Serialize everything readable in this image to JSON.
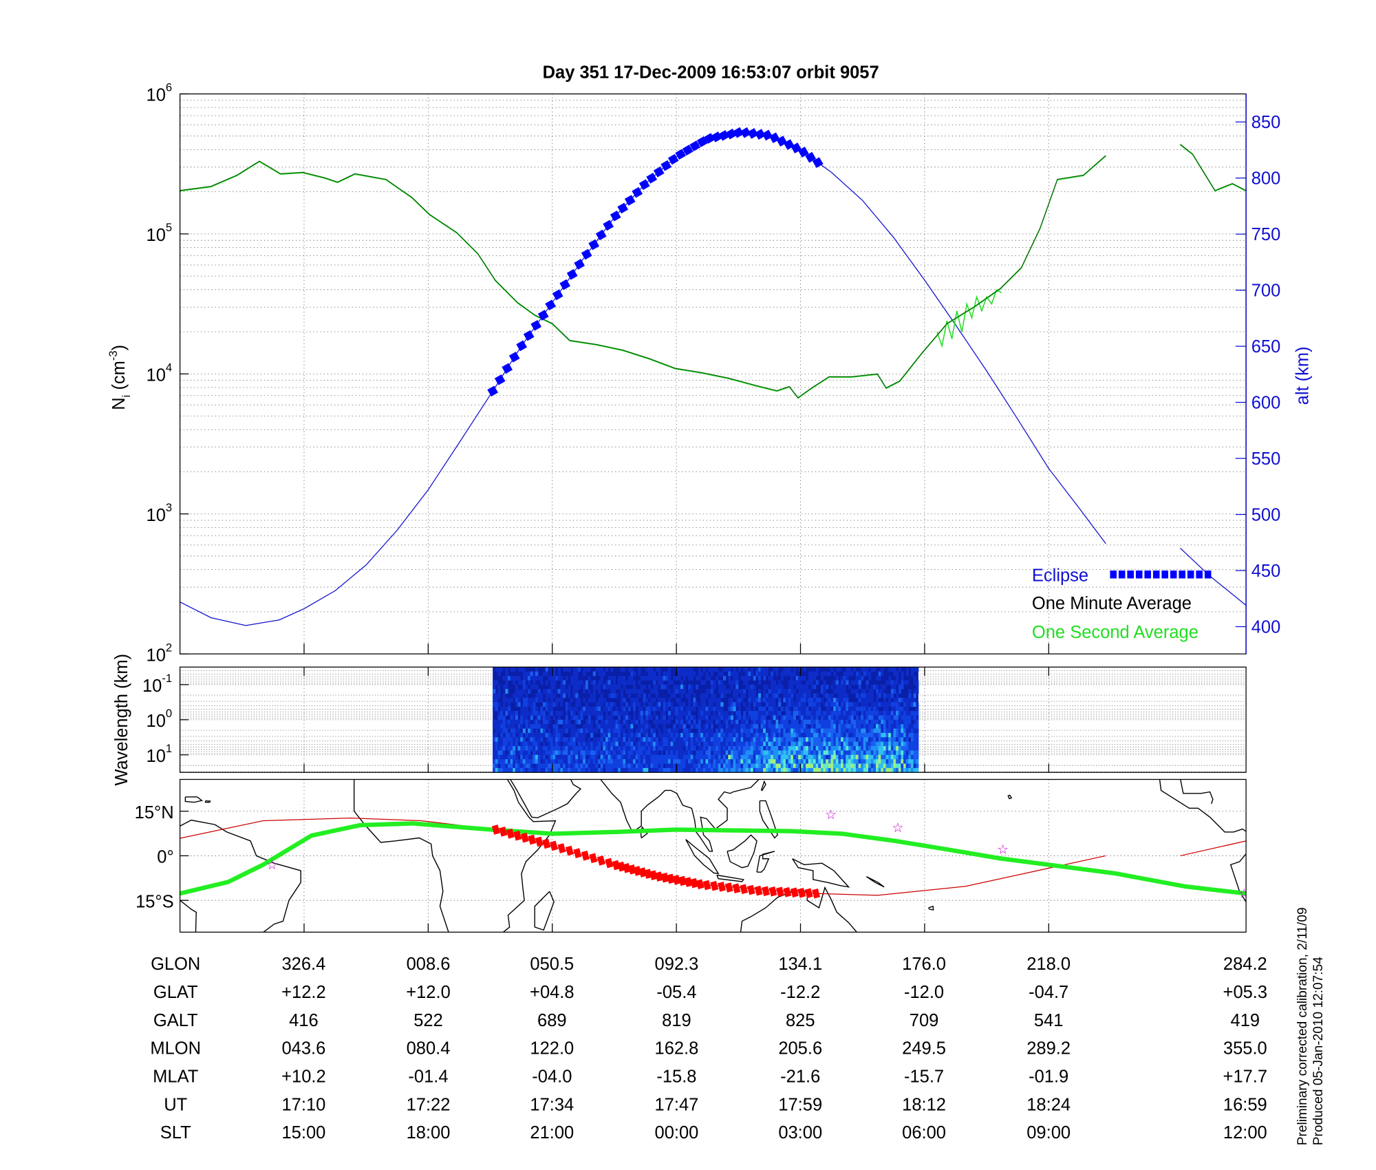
{
  "title": "Day 351  17-Dec-2009 16:53:07   orbit 9057",
  "axes": {
    "left_label_base": "N",
    "left_label_sub": "i",
    "left_label_unit": " (cm",
    "left_label_exp": "-3",
    "left_label_close": ")",
    "right_label": "alt (km)",
    "spectro_label": "Wavelength (km)",
    "map_lat_labels": [
      "15°N",
      "0°",
      "15°S"
    ]
  },
  "legend": {
    "eclipse": "Eclipse",
    "one_minute": "One Minute Average",
    "one_second": "One Second Average"
  },
  "colors": {
    "altitude": "#1010d0",
    "eclipse": "#0000ff",
    "one_minute": "#006400",
    "one_second": "#22dd22",
    "track_red": "#cc0000",
    "eclipse_track": "#ff0000",
    "mag_equator": "#22ee22",
    "star": "#cc00cc"
  },
  "table": {
    "rows": [
      {
        "label": "GLON",
        "values": [
          "326.4",
          "008.6",
          "050.5",
          "092.3",
          "134.1",
          "176.0",
          "218.0",
          "284.2"
        ]
      },
      {
        "label": "GLAT",
        "values": [
          "+12.2",
          "+12.0",
          "+04.8",
          "-05.4",
          "-12.2",
          "-12.0",
          "-04.7",
          "+05.3"
        ]
      },
      {
        "label": "GALT",
        "values": [
          "416",
          "522",
          "689",
          "819",
          "825",
          "709",
          "541",
          "419"
        ]
      },
      {
        "label": "MLON",
        "values": [
          "043.6",
          "080.4",
          "122.0",
          "162.8",
          "205.6",
          "249.5",
          "289.2",
          "355.0"
        ]
      },
      {
        "label": "MLAT",
        "values": [
          "+10.2",
          "-01.4",
          "-04.0",
          "-15.8",
          "-21.6",
          "-15.7",
          "-01.9",
          "+17.7"
        ]
      },
      {
        "label": "UT",
        "values": [
          "17:10",
          "17:22",
          "17:34",
          "17:47",
          "17:59",
          "18:12",
          "18:24",
          "16:59"
        ]
      },
      {
        "label": "SLT",
        "values": [
          "15:00",
          "18:00",
          "21:00",
          "00:00",
          "03:00",
          "06:00",
          "09:00",
          "12:00"
        ]
      }
    ]
  },
  "footer": {
    "line1": "Preliminary corrected calibration, 2/11/09",
    "line2": "Produced 05-Jan-2010 12:07:54"
  },
  "chart_data": [
    {
      "type": "line",
      "title": "Day 351  17-Dec-2009 16:53:07   orbit 9057",
      "xlabel": "",
      "ylabel": "N_i (cm^-3)",
      "y2label": "alt (km)",
      "x_units": "table column index (0 = left edge, 1..7 = labeled columns, 8.59 = right edge)",
      "xlim": [
        0,
        8.59
      ],
      "x_ticks": [
        1,
        2,
        3,
        4,
        5,
        6,
        7
      ],
      "ylim_log10": [
        2,
        6
      ],
      "y_tick_labels": [
        {
          "base": "10",
          "exp": "2"
        },
        {
          "base": "10",
          "exp": "3"
        },
        {
          "base": "10",
          "exp": "4"
        },
        {
          "base": "10",
          "exp": "5"
        },
        {
          "base": "10",
          "exp": "6"
        }
      ],
      "y2lim": [
        375.7,
        875
      ],
      "y2_ticks": [
        "400",
        "450",
        "500",
        "550",
        "600",
        "650",
        "700",
        "750",
        "800",
        "850"
      ],
      "grid": true,
      "legend_position": "bottom-right",
      "series": [
        {
          "name": "alt (km)",
          "axis": "right",
          "segments": [
            [
              [
                0,
                422
              ],
              [
                0.25,
                408
              ],
              [
                0.53,
                401
              ],
              [
                0.8,
                406
              ],
              [
                1,
                416
              ],
              [
                1.25,
                432
              ],
              [
                1.5,
                455
              ],
              [
                1.75,
                486
              ],
              [
                2,
                522
              ],
              [
                2.25,
                564
              ],
              [
                2.52,
                610
              ],
              [
                2.75,
                650
              ],
              [
                3,
                689
              ],
              [
                3.25,
                728
              ],
              [
                3.5,
                765
              ],
              [
                3.75,
                795
              ],
              [
                4,
                819
              ],
              [
                4.25,
                835
              ],
              [
                4.52,
                841
              ],
              [
                4.75,
                838
              ],
              [
                5,
                825
              ],
              [
                5.25,
                805
              ],
              [
                5.5,
                780
              ],
              [
                5.75,
                747
              ],
              [
                6,
                709
              ],
              [
                6.25,
                669
              ],
              [
                6.5,
                628
              ],
              [
                6.75,
                585
              ],
              [
                7,
                541
              ],
              [
                7.25,
                505
              ],
              [
                7.46,
                474
              ]
            ],
            [
              [
                8.06,
                470
              ],
              [
                8.3,
                445
              ],
              [
                8.59,
                419
              ]
            ]
          ]
        },
        {
          "name": "Eclipse",
          "axis": "right",
          "x_range": [
            2.52,
            5.14
          ]
        },
        {
          "name": "One Minute Average",
          "axis": "left",
          "log10": true,
          "segments": [
            [
              [
                0,
                5.31
              ],
              [
                0.25,
                5.34
              ],
              [
                0.46,
                5.42
              ],
              [
                0.64,
                5.52
              ],
              [
                0.81,
                5.43
              ],
              [
                0.99,
                5.44
              ],
              [
                1.17,
                5.4
              ],
              [
                1.27,
                5.37
              ],
              [
                1.41,
                5.43
              ],
              [
                1.66,
                5.39
              ],
              [
                1.87,
                5.26
              ],
              [
                2.01,
                5.14
              ],
              [
                2.23,
                5.01
              ],
              [
                2.4,
                4.86
              ],
              [
                2.54,
                4.67
              ],
              [
                2.72,
                4.51
              ],
              [
                2.86,
                4.42
              ],
              [
                3,
                4.36
              ],
              [
                3.14,
                4.24
              ],
              [
                3.36,
                4.21
              ],
              [
                3.57,
                4.17
              ],
              [
                3.78,
                4.11
              ],
              [
                3.99,
                4.04
              ],
              [
                4.2,
                4.01
              ],
              [
                4.42,
                3.97
              ],
              [
                4.63,
                3.92
              ],
              [
                4.81,
                3.88
              ],
              [
                4.91,
                3.91
              ],
              [
                4.98,
                3.83
              ],
              [
                5.09,
                3.9
              ],
              [
                5.23,
                3.98
              ],
              [
                5.41,
                3.98
              ],
              [
                5.62,
                4.0
              ],
              [
                5.69,
                3.9
              ],
              [
                5.8,
                3.95
              ],
              [
                5.97,
                4.14
              ],
              [
                6.18,
                4.36
              ],
              [
                6.4,
                4.48
              ],
              [
                6.61,
                4.61
              ],
              [
                6.78,
                4.76
              ],
              [
                6.93,
                5.04
              ],
              [
                7.07,
                5.39
              ],
              [
                7.28,
                5.42
              ],
              [
                7.46,
                5.56
              ]
            ],
            [
              [
                8.06,
                5.64
              ],
              [
                8.16,
                5.57
              ],
              [
                8.34,
                5.31
              ],
              [
                8.48,
                5.36
              ],
              [
                8.59,
                5.31
              ]
            ]
          ]
        },
        {
          "name": "One Second Average",
          "axis": "left",
          "log10": true,
          "segments": [
            [
              [
                6.1,
                4.3
              ],
              [
                6.14,
                4.2
              ],
              [
                6.18,
                4.38
              ],
              [
                6.22,
                4.25
              ],
              [
                6.26,
                4.45
              ],
              [
                6.3,
                4.3
              ],
              [
                6.34,
                4.5
              ],
              [
                6.38,
                4.4
              ],
              [
                6.42,
                4.55
              ],
              [
                6.46,
                4.45
              ],
              [
                6.5,
                4.55
              ],
              [
                6.54,
                4.5
              ],
              [
                6.58,
                4.6
              ],
              [
                6.62,
                4.58
              ]
            ]
          ]
        }
      ]
    },
    {
      "type": "heatmap",
      "ylabel": "Wavelength (km)",
      "y_log10_range": [
        -1.5,
        1.5
      ],
      "y_tick_labels": [
        {
          "base": "10",
          "exp": "-1"
        },
        {
          "base": "10",
          "exp": "0"
        },
        {
          "base": "10",
          "exp": "1"
        }
      ],
      "x_range": [
        2.52,
        5.95
      ],
      "colormap": "jet (dark blue low, cyan/yellow high; higher power at long wavelengths, x 4.5-5.9)"
    },
    {
      "type": "scatter",
      "description_units": "longitude / latitude degrees",
      "lon_range": [
        -75.8,
        284.2
      ],
      "lat_range": [
        -25.7,
        25.7
      ],
      "lat_ticks": [
        15,
        0,
        -15
      ],
      "ground_track": [
        [
          [
            -75.8,
            5.9
          ],
          [
            -47.7,
            11.8
          ],
          [
            -18,
            12.7
          ],
          [
            5.7,
            11.8
          ],
          [
            30.9,
            8.8
          ],
          [
            70.9,
            -3
          ],
          [
            100.5,
            -9.7
          ],
          [
            139,
            -12.7
          ],
          [
            159.8,
            -13.3
          ],
          [
            189.4,
            -10.3
          ],
          [
            236.8,
            0
          ]
        ],
        [
          [
            262,
            0
          ],
          [
            284.2,
            5
          ]
        ]
      ],
      "eclipse_track": [
        [
          30.9,
          8.8
        ],
        [
          50,
          3.5
        ],
        [
          70.9,
          -3
        ],
        [
          85,
          -6.8
        ],
        [
          100.5,
          -9.7
        ],
        [
          120,
          -11.8
        ],
        [
          139,
          -12.7
        ]
      ],
      "magnetic_equator": [
        [
          -75.8,
          -12.7
        ],
        [
          -59.5,
          -8.8
        ],
        [
          -47.7,
          -3
        ],
        [
          -31.4,
          6.8
        ],
        [
          -15,
          10.3
        ],
        [
          2.7,
          10.9
        ],
        [
          29.4,
          8.8
        ],
        [
          50.1,
          7.4
        ],
        [
          70.9,
          8
        ],
        [
          91.6,
          8.8
        ],
        [
          130.1,
          8.3
        ],
        [
          147.9,
          7.4
        ],
        [
          165.7,
          5
        ],
        [
          183.5,
          2.1
        ],
        [
          201.2,
          -0.9
        ],
        [
          239.8,
          -5.9
        ],
        [
          263.5,
          -10.3
        ],
        [
          284.2,
          -12.7
        ]
      ],
      "stars": [
        [
          -44.7,
          -3
        ],
        [
          144,
          13.9
        ],
        [
          166.6,
          9.4
        ],
        [
          202.1,
          2.1
        ],
        [
          283.6,
          -12.7
        ]
      ]
    }
  ]
}
